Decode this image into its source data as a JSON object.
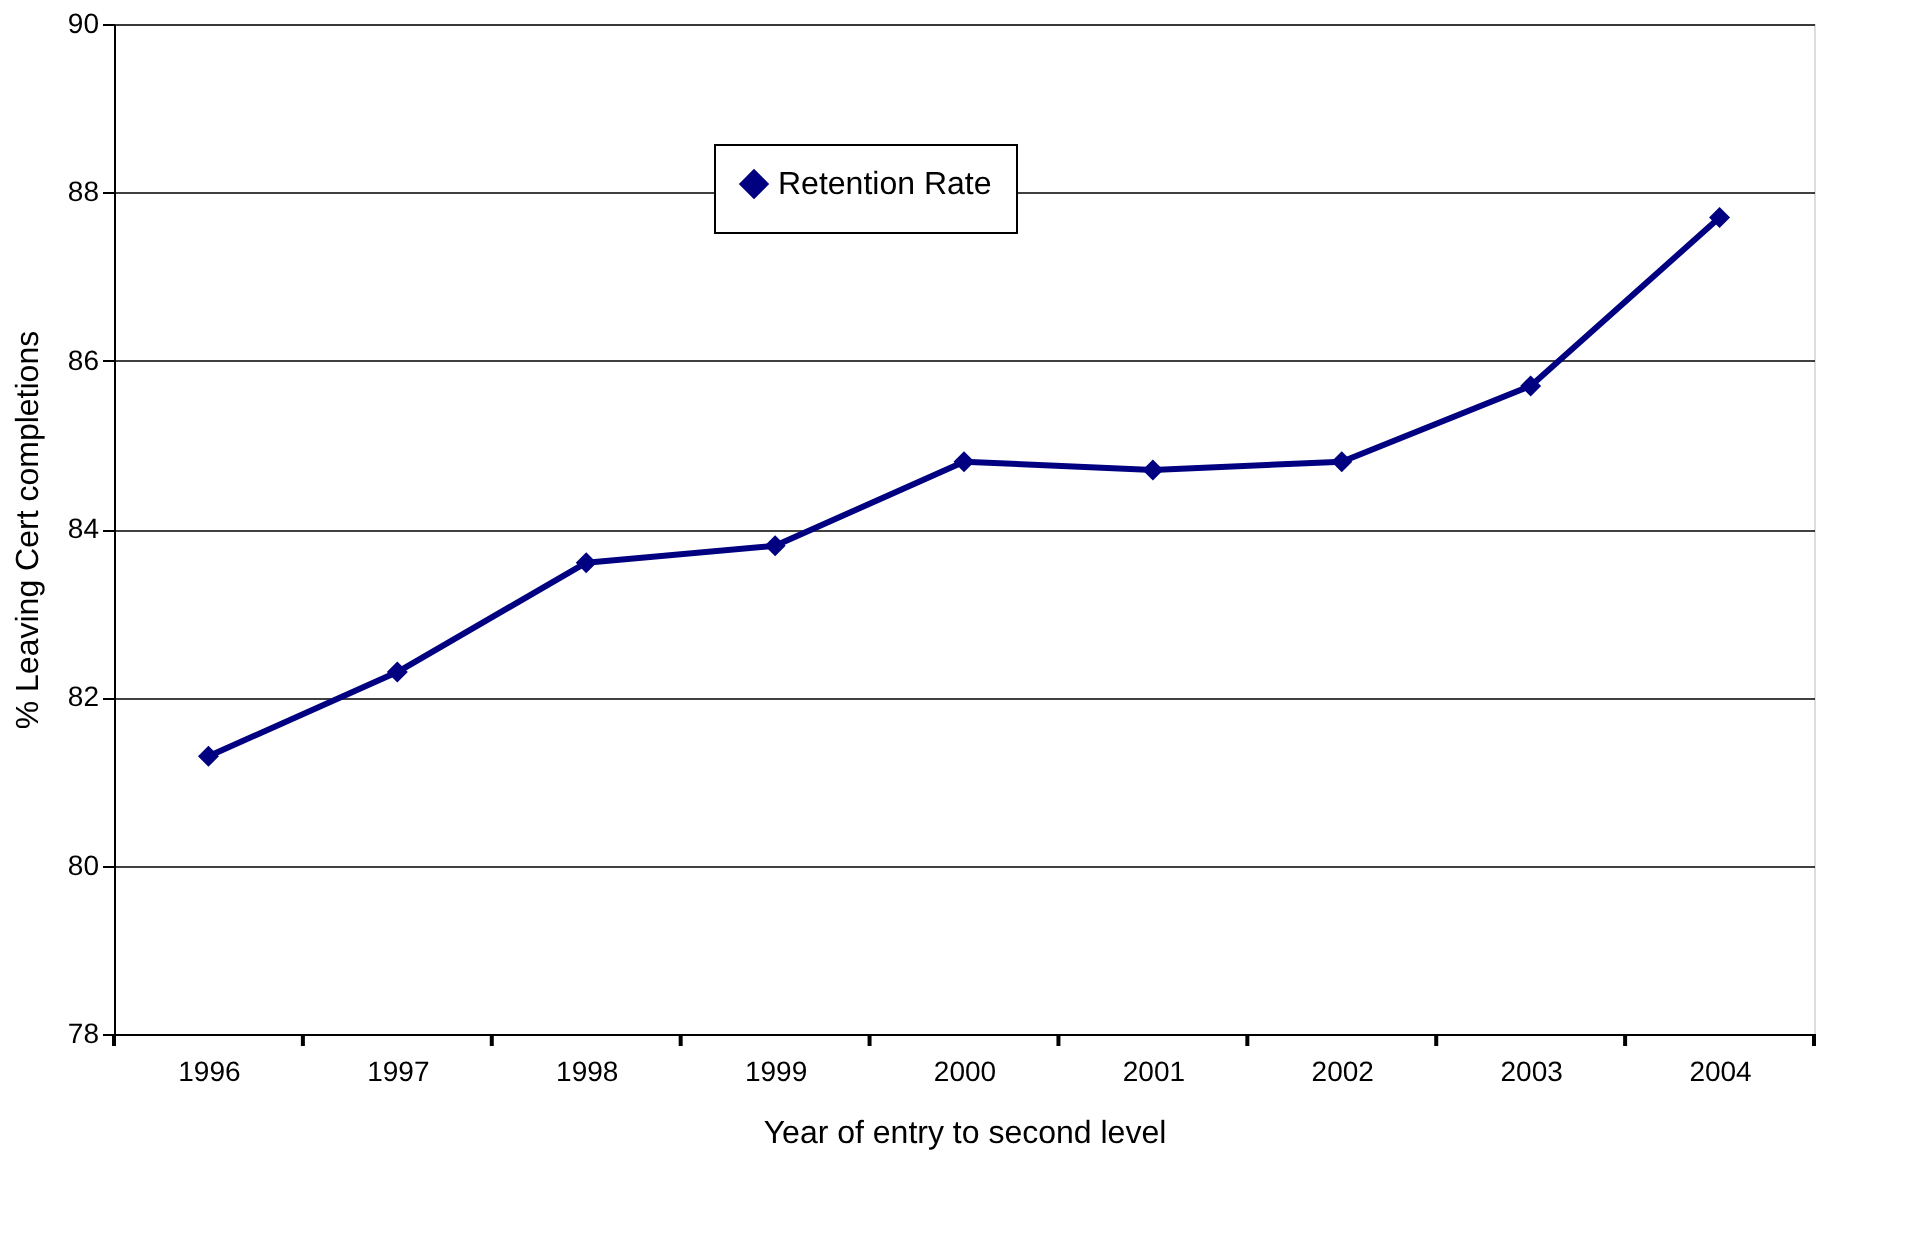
{
  "chart_data": {
    "type": "line",
    "xlabel": "Year of entry to second level",
    "ylabel": "% Leaving Cert completions",
    "categories": [
      "1996",
      "1997",
      "1998",
      "1999",
      "2000",
      "2001",
      "2002",
      "2003",
      "2004"
    ],
    "series": [
      {
        "name": "Retention Rate",
        "color": "#000080",
        "values": [
          81.3,
          82.3,
          83.6,
          83.8,
          84.8,
          84.7,
          84.8,
          85.7,
          87.7
        ]
      }
    ],
    "ylim": [
      78,
      90
    ],
    "yticks": [
      78,
      80,
      82,
      84,
      86,
      88,
      90
    ],
    "grid": "y",
    "legend": "top",
    "marker": "diamond",
    "line_style": "solid"
  }
}
